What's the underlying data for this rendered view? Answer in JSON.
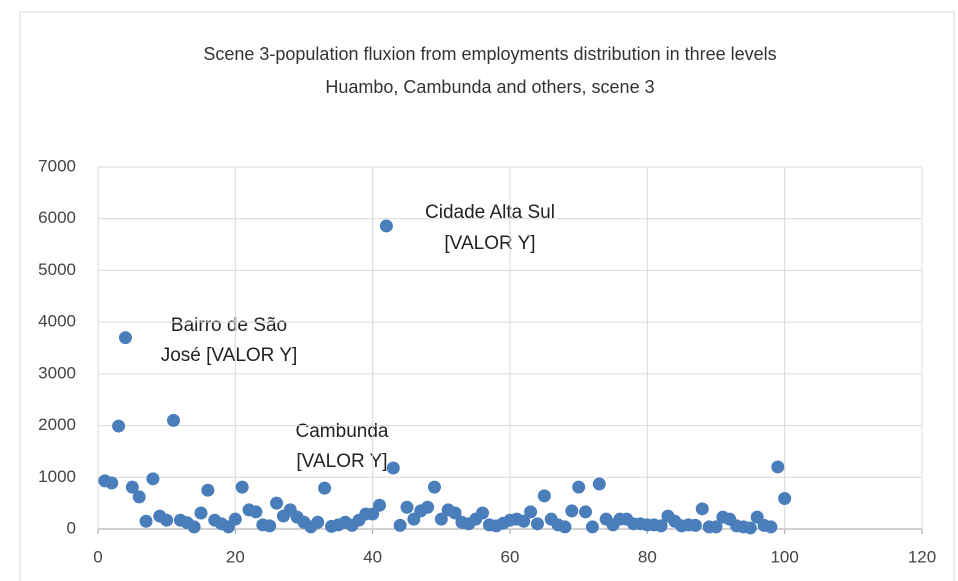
{
  "chart_data": {
    "type": "scatter",
    "title": "Scene 3-population fluxion from employments distribution in three levels",
    "subtitle": "Huambo, Cambunda and others, scene 3",
    "annotations": [
      {
        "lines": [
          "Cidade Alta Sul",
          "[VALOR Y]"
        ]
      },
      {
        "lines": [
          "Bairro de São",
          "José [VALOR Y]"
        ]
      },
      {
        "lines": [
          "Cambunda",
          "[VALOR Y]"
        ]
      }
    ],
    "color": "#4a7ebb",
    "grid": true,
    "xlim": [
      0,
      120
    ],
    "xticks": [
      0,
      20,
      40,
      60,
      80,
      100,
      120
    ],
    "ylim": [
      0,
      7000
    ],
    "yticks": [
      0,
      1000,
      2000,
      3000,
      4000,
      5000,
      6000,
      7000
    ],
    "x": [
      1,
      2,
      3,
      4,
      5,
      6,
      7,
      8,
      9,
      10,
      11,
      12,
      13,
      14,
      15,
      16,
      17,
      18,
      19,
      20,
      21,
      22,
      23,
      24,
      25,
      26,
      27,
      28,
      29,
      30,
      31,
      32,
      33,
      34,
      35,
      36,
      37,
      38,
      39,
      40,
      41,
      42,
      43,
      44,
      45,
      46,
      47,
      48,
      49,
      50,
      51,
      52,
      53,
      54,
      55,
      56,
      57,
      58,
      59,
      60,
      61,
      62,
      63,
      64,
      65,
      66,
      67,
      68,
      69,
      70,
      71,
      72,
      73,
      74,
      75,
      76,
      77,
      78,
      79,
      80,
      81,
      82,
      83,
      84,
      85,
      86,
      87,
      88,
      89,
      90,
      91,
      92,
      93,
      94,
      95,
      96,
      97,
      98,
      99,
      100
    ],
    "values": [
      930,
      890,
      1990,
      3700,
      810,
      620,
      150,
      970,
      250,
      170,
      2100,
      170,
      120,
      40,
      310,
      750,
      170,
      100,
      40,
      190,
      810,
      370,
      330,
      80,
      60,
      500,
      250,
      370,
      230,
      130,
      40,
      130,
      790,
      50,
      80,
      130,
      70,
      170,
      290,
      290,
      460,
      5860,
      1180,
      70,
      420,
      190,
      350,
      420,
      810,
      190,
      370,
      310,
      130,
      100,
      190,
      310,
      80,
      60,
      110,
      170,
      190,
      150,
      330,
      100,
      640,
      190,
      80,
      40,
      350,
      810,
      330,
      40,
      870,
      190,
      80,
      190,
      190,
      100,
      100,
      80,
      80,
      60,
      250,
      150,
      60,
      80,
      70,
      390,
      40,
      40,
      230,
      190,
      60,
      40,
      20,
      230,
      70,
      40,
      1200,
      590
    ]
  }
}
